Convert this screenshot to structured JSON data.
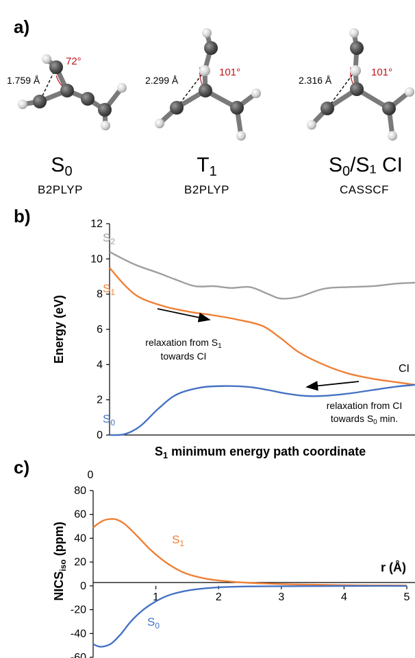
{
  "panel_a": {
    "label": "a)",
    "structures": [
      {
        "state": "S",
        "state_sub": "0",
        "state_tail": "",
        "method": "B2PLYP",
        "distance": "1.759 Å",
        "angle": "72°"
      },
      {
        "state": "T",
        "state_sub": "1",
        "state_tail": "",
        "method": "B2PLYP",
        "distance": "2.299 Å",
        "angle": "101°"
      },
      {
        "state": "S",
        "state_sub": "0",
        "state_tail": "/S₁ CI",
        "method": "CASSCF",
        "distance": "2.316 Å",
        "angle": "101°"
      }
    ]
  },
  "chart_data": [
    {
      "panel": "b)",
      "type": "line",
      "xlabel_main": "S",
      "xlabel_sub": "1",
      "xlabel_tail": " minimum energy path coordinate",
      "ylabel": "Energy (eV)",
      "ylim": [
        0,
        12
      ],
      "yticks": [
        "0",
        "2",
        "4",
        "6",
        "8",
        "10",
        "12"
      ],
      "x_tick_label": "0",
      "series": [
        {
          "name": "S",
          "name_sub": "2",
          "color": "#9e9e9e",
          "x": [
            0.0,
            0.08,
            0.16,
            0.22,
            0.28,
            0.34,
            0.4,
            0.46,
            0.52,
            0.56,
            0.62,
            0.7,
            0.78,
            0.86,
            0.94,
            1.0
          ],
          "y": [
            10.4,
            9.7,
            9.2,
            8.8,
            8.45,
            8.45,
            8.35,
            8.4,
            8.0,
            7.75,
            7.85,
            8.3,
            8.4,
            8.45,
            8.6,
            8.65
          ]
        },
        {
          "name": "S",
          "name_sub": "1",
          "color": "#f07f35",
          "x": [
            0.0,
            0.05,
            0.1,
            0.18,
            0.26,
            0.34,
            0.42,
            0.5,
            0.56,
            0.62,
            0.7,
            0.78,
            0.86,
            0.94,
            1.0
          ],
          "y": [
            9.5,
            8.5,
            7.8,
            7.3,
            7.0,
            6.8,
            6.55,
            6.2,
            5.5,
            4.7,
            4.0,
            3.5,
            3.2,
            3.0,
            2.85
          ]
        },
        {
          "name": "S",
          "name_sub": "0",
          "color": "#4472c4",
          "x": [
            0.0,
            0.05,
            0.1,
            0.16,
            0.22,
            0.3,
            0.38,
            0.46,
            0.52,
            0.58,
            0.64,
            0.7,
            0.78,
            0.86,
            0.94,
            1.0
          ],
          "y": [
            0.0,
            0.05,
            0.5,
            1.5,
            2.3,
            2.7,
            2.78,
            2.72,
            2.55,
            2.35,
            2.22,
            2.22,
            2.35,
            2.55,
            2.75,
            2.85
          ]
        }
      ],
      "annotations": [
        {
          "text_main": "relaxation from S",
          "text_sub": "1",
          "text_line2": "towards CI"
        },
        {
          "text_main": "relaxation from CI",
          "text_line2_main": "towards S",
          "text_line2_sub": "0",
          "text_line2_tail": " min."
        }
      ],
      "ci_label": "CI"
    },
    {
      "panel": "c)",
      "type": "line",
      "xlabel": "r (Å)",
      "ylabel_main": "NICS",
      "ylabel_sub": "iso",
      "ylabel_tail": " (ppm)",
      "xlim": [
        0,
        5
      ],
      "ylim": [
        -60,
        80
      ],
      "xticks": [
        "1",
        "2",
        "3",
        "4",
        "5"
      ],
      "yticks": [
        "-60",
        "-40",
        "-20",
        "0",
        "20",
        "40",
        "60",
        "80"
      ],
      "series": [
        {
          "name": "S",
          "name_sub": "1",
          "color": "#f07f35",
          "x": [
            0.0,
            0.1,
            0.2,
            0.35,
            0.5,
            0.7,
            0.9,
            1.1,
            1.3,
            1.5,
            1.8,
            2.1,
            2.5,
            3.0,
            3.5,
            4.0,
            4.5,
            5.0
          ],
          "y": [
            49,
            53,
            55.5,
            56,
            52,
            42,
            31,
            22,
            15,
            10,
            6,
            4,
            2.5,
            1.5,
            1,
            0.6,
            0.4,
            0.3
          ]
        },
        {
          "name": "S",
          "name_sub": "0",
          "color": "#4472c4",
          "x": [
            0.0,
            0.1,
            0.2,
            0.3,
            0.45,
            0.6,
            0.8,
            1.0,
            1.2,
            1.5,
            1.8,
            2.1,
            2.5,
            3.0,
            3.5,
            4.0,
            5.0
          ],
          "y": [
            -49,
            -51,
            -50.5,
            -48,
            -40,
            -30,
            -20,
            -13,
            -8,
            -4,
            -2,
            -1,
            -0.5,
            -0.3,
            -0.2,
            -0.1,
            0
          ]
        }
      ]
    }
  ]
}
